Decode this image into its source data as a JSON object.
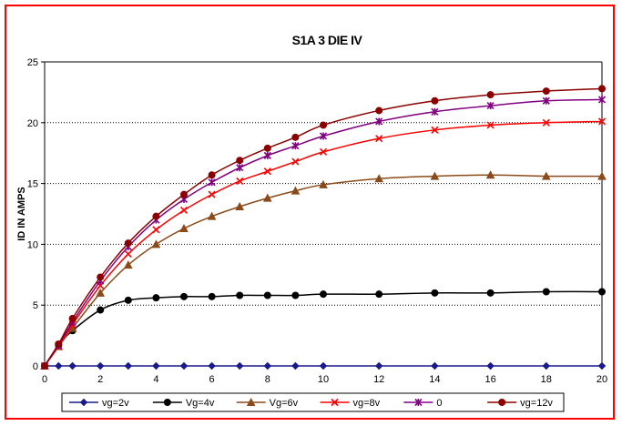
{
  "chart_data": {
    "type": "line",
    "title": "S1A 3 DIE IV",
    "xlabel": "",
    "ylabel": "ID IN AMPS",
    "xlim": [
      0,
      20
    ],
    "ylim": [
      0,
      25
    ],
    "xticks": [
      0,
      2,
      4,
      6,
      8,
      10,
      12,
      14,
      16,
      18,
      20
    ],
    "yticks": [
      0,
      5,
      10,
      15,
      20,
      25
    ],
    "grid": "horizontal dotted",
    "legend_position": "bottom",
    "x": [
      0,
      0.5,
      1,
      2,
      3,
      4,
      5,
      6,
      7,
      8,
      9,
      10,
      12,
      14,
      16,
      18,
      20
    ],
    "series": [
      {
        "name": "vg=2v",
        "color": "#1a1a8c",
        "marker": "diamond",
        "values": [
          0,
          0,
          0,
          0,
          0,
          0,
          0,
          0,
          0,
          0,
          0,
          0,
          0,
          0,
          0,
          0,
          0
        ]
      },
      {
        "name": "Vg=4v",
        "color": "#000000",
        "marker": "circle",
        "values": [
          0,
          1.7,
          2.9,
          4.6,
          5.4,
          5.6,
          5.7,
          5.7,
          5.8,
          5.8,
          5.8,
          5.9,
          5.9,
          6.0,
          6.0,
          6.1,
          6.1
        ]
      },
      {
        "name": "Vg=6v",
        "color": "#8b4a1a",
        "marker": "triangle",
        "values": [
          0,
          1.6,
          3.1,
          6.0,
          8.3,
          10.0,
          11.3,
          12.3,
          13.1,
          13.8,
          14.4,
          14.9,
          15.4,
          15.6,
          15.7,
          15.6,
          15.6
        ]
      },
      {
        "name": "vg=8v",
        "color": "#ff0000",
        "marker": "x",
        "values": [
          0,
          1.6,
          3.4,
          6.6,
          9.2,
          11.2,
          12.8,
          14.1,
          15.2,
          16.0,
          16.8,
          17.6,
          18.7,
          19.4,
          19.8,
          20.0,
          20.1
        ]
      },
      {
        "name": "0",
        "color": "#800080",
        "marker": "star",
        "values": [
          0,
          1.7,
          3.6,
          7.0,
          9.8,
          12.0,
          13.7,
          15.1,
          16.3,
          17.3,
          18.1,
          18.9,
          20.1,
          20.9,
          21.4,
          21.8,
          21.9
        ]
      },
      {
        "name": "vg=12v",
        "color": "#8b0000",
        "marker": "circle",
        "values": [
          0,
          1.8,
          3.9,
          7.3,
          10.1,
          12.3,
          14.1,
          15.7,
          16.9,
          17.9,
          18.8,
          19.8,
          21.0,
          21.8,
          22.3,
          22.6,
          22.8
        ]
      }
    ]
  }
}
